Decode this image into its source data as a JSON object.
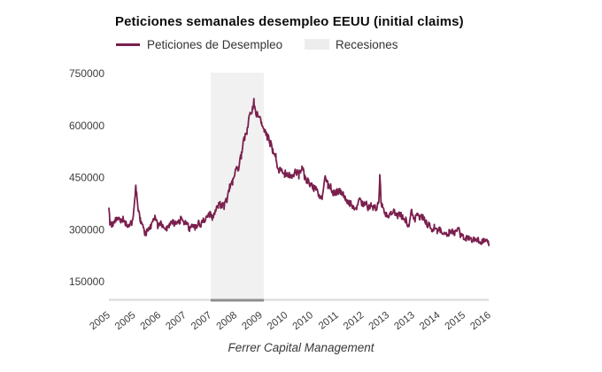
{
  "title": "Peticiones semanales desempleo EEUU (initial claims)",
  "legend": {
    "items": [
      {
        "label": "Peticiones de Desempleo",
        "swatch": "line",
        "color": "#7a1f4d"
      },
      {
        "label": "Recesiones",
        "swatch": "box",
        "color": "#ededed"
      }
    ]
  },
  "footer": "Ferrer Capital Management",
  "colors": {
    "line": "#7a1f4d",
    "recession_band": "#f1f1f1",
    "axis_line": "#d9d9d9",
    "recession_axis_segment": "#8e8e8e",
    "tick_label": "#3c3c3c",
    "background": "#ffffff"
  },
  "chart_data": {
    "type": "line",
    "title": "Peticiones semanales desempleo EEUU (initial claims)",
    "xlabel": "",
    "ylabel": "",
    "grid": false,
    "legend_position": "top",
    "x_tick_labels": [
      "2005",
      "2005",
      "2006",
      "2007",
      "2007",
      "2008",
      "2009",
      "2010",
      "2010",
      "2011",
      "2012",
      "2013",
      "2013",
      "2014",
      "2015",
      "2016"
    ],
    "y_ticks": [
      150000,
      300000,
      450000,
      600000,
      750000
    ],
    "y_tick_labels": [
      "150000",
      "300000",
      "450000",
      "600000",
      "750000"
    ],
    "x_domain_years": [
      2005.05,
      2016.03
    ],
    "ylim": [
      99000,
      753000
    ],
    "recessions": [
      {
        "label": "Recesiones",
        "start": 2007.99,
        "end": 2009.53
      }
    ],
    "weekly_noise": 8500,
    "series": [
      {
        "name": "Peticiones de Desempleo",
        "color": "#7a1f4d",
        "anchors": [
          [
            2005.05,
            368000
          ],
          [
            2005.08,
            320000
          ],
          [
            2005.13,
            312000
          ],
          [
            2005.21,
            322000
          ],
          [
            2005.29,
            332000
          ],
          [
            2005.38,
            324000
          ],
          [
            2005.46,
            331000
          ],
          [
            2005.54,
            318000
          ],
          [
            2005.63,
            312000
          ],
          [
            2005.71,
            319000
          ],
          [
            2005.76,
            341000
          ],
          [
            2005.81,
            398000
          ],
          [
            2005.83,
            428000
          ],
          [
            2005.86,
            393000
          ],
          [
            2005.9,
            350000
          ],
          [
            2005.96,
            330000
          ],
          [
            2006.04,
            303000
          ],
          [
            2006.1,
            285000
          ],
          [
            2006.17,
            297000
          ],
          [
            2006.25,
            307000
          ],
          [
            2006.33,
            330000
          ],
          [
            2006.38,
            335000
          ],
          [
            2006.46,
            312000
          ],
          [
            2006.54,
            318000
          ],
          [
            2006.63,
            314000
          ],
          [
            2006.71,
            302000
          ],
          [
            2006.79,
            308000
          ],
          [
            2006.88,
            321000
          ],
          [
            2006.96,
            317000
          ],
          [
            2007.04,
            318000
          ],
          [
            2007.13,
            330000
          ],
          [
            2007.21,
            316000
          ],
          [
            2007.29,
            322000
          ],
          [
            2007.38,
            302000
          ],
          [
            2007.46,
            314000
          ],
          [
            2007.54,
            306000
          ],
          [
            2007.63,
            320000
          ],
          [
            2007.71,
            312000
          ],
          [
            2007.79,
            327000
          ],
          [
            2007.88,
            336000
          ],
          [
            2007.96,
            344000
          ],
          [
            2008.04,
            336000
          ],
          [
            2008.13,
            352000
          ],
          [
            2008.21,
            368000
          ],
          [
            2008.29,
            372000
          ],
          [
            2008.38,
            368000
          ],
          [
            2008.46,
            388000
          ],
          [
            2008.54,
            420000
          ],
          [
            2008.63,
            440000
          ],
          [
            2008.71,
            468000
          ],
          [
            2008.79,
            478000
          ],
          [
            2008.88,
            518000
          ],
          [
            2008.96,
            556000
          ],
          [
            2009.04,
            588000
          ],
          [
            2009.13,
            630000
          ],
          [
            2009.21,
            652000
          ],
          [
            2009.25,
            667000
          ],
          [
            2009.29,
            645000
          ],
          [
            2009.38,
            623000
          ],
          [
            2009.46,
            613000
          ],
          [
            2009.54,
            578000
          ],
          [
            2009.63,
            568000
          ],
          [
            2009.71,
            551000
          ],
          [
            2009.79,
            531000
          ],
          [
            2009.88,
            505000
          ],
          [
            2009.96,
            470000
          ],
          [
            2010.04,
            468000
          ],
          [
            2010.13,
            462000
          ],
          [
            2010.21,
            455000
          ],
          [
            2010.29,
            453000
          ],
          [
            2010.38,
            459000
          ],
          [
            2010.46,
            468000
          ],
          [
            2010.54,
            457000
          ],
          [
            2010.63,
            478000
          ],
          [
            2010.71,
            453000
          ],
          [
            2010.79,
            441000
          ],
          [
            2010.88,
            428000
          ],
          [
            2010.96,
            419000
          ],
          [
            2011.04,
            413000
          ],
          [
            2011.13,
            392000
          ],
          [
            2011.21,
            392000
          ],
          [
            2011.3,
            460000
          ],
          [
            2011.38,
            426000
          ],
          [
            2011.46,
            422000
          ],
          [
            2011.54,
            404000
          ],
          [
            2011.63,
            410000
          ],
          [
            2011.71,
            414000
          ],
          [
            2011.79,
            402000
          ],
          [
            2011.88,
            395000
          ],
          [
            2011.96,
            377000
          ],
          [
            2012.04,
            373000
          ],
          [
            2012.13,
            359000
          ],
          [
            2012.21,
            364000
          ],
          [
            2012.29,
            384000
          ],
          [
            2012.38,
            373000
          ],
          [
            2012.46,
            378000
          ],
          [
            2012.54,
            363000
          ],
          [
            2012.63,
            371000
          ],
          [
            2012.71,
            364000
          ],
          [
            2012.79,
            364000
          ],
          [
            2012.85,
            372000
          ],
          [
            2012.88,
            451000
          ],
          [
            2012.92,
            372000
          ],
          [
            2012.96,
            368000
          ],
          [
            2013.04,
            346000
          ],
          [
            2013.13,
            342000
          ],
          [
            2013.21,
            347000
          ],
          [
            2013.29,
            352000
          ],
          [
            2013.38,
            340000
          ],
          [
            2013.46,
            344000
          ],
          [
            2013.54,
            334000
          ],
          [
            2013.63,
            327000
          ],
          [
            2013.71,
            308000
          ],
          [
            2013.79,
            358000
          ],
          [
            2013.88,
            330000
          ],
          [
            2013.96,
            340000
          ],
          [
            2014.04,
            332000
          ],
          [
            2014.13,
            336000
          ],
          [
            2014.21,
            320000
          ],
          [
            2014.29,
            312000
          ],
          [
            2014.38,
            302000
          ],
          [
            2014.46,
            307000
          ],
          [
            2014.54,
            297000
          ],
          [
            2014.63,
            300000
          ],
          [
            2014.71,
            290000
          ],
          [
            2014.79,
            284000
          ],
          [
            2014.88,
            291000
          ],
          [
            2014.96,
            296000
          ],
          [
            2015.04,
            292000
          ],
          [
            2015.13,
            306000
          ],
          [
            2015.21,
            286000
          ],
          [
            2015.29,
            276000
          ],
          [
            2015.38,
            274000
          ],
          [
            2015.46,
            276000
          ],
          [
            2015.54,
            270000
          ],
          [
            2015.63,
            274000
          ],
          [
            2015.71,
            270000
          ],
          [
            2015.79,
            263000
          ],
          [
            2015.88,
            270000
          ],
          [
            2015.96,
            276000
          ],
          [
            2016.0,
            270000
          ],
          [
            2016.03,
            258000
          ]
        ]
      }
    ]
  }
}
